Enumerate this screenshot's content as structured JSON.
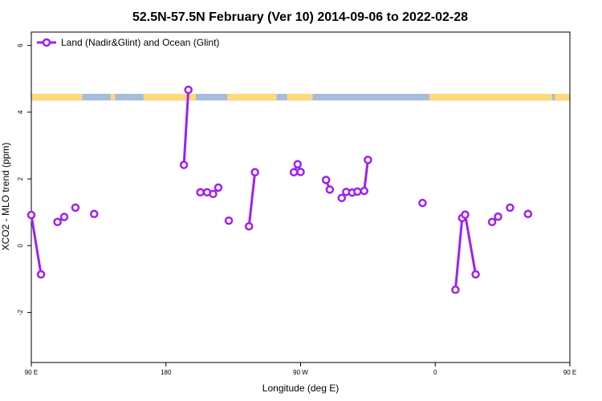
{
  "chart_data": {
    "type": "line",
    "title": "52.5N-57.5N February (Ver 10)   2014-09-06 to 2022-02-28",
    "xlabel": "Longitude (deg E)",
    "ylabel": "XCO2 - MLO trend (ppm)",
    "xlim": [
      -180,
      180
    ],
    "ylim": [
      -3.5,
      6.4
    ],
    "x_ticks": [
      {
        "value": -180,
        "label": "90 E"
      },
      {
        "value": -90,
        "label": "180"
      },
      {
        "value": 0,
        "label": "90 W"
      },
      {
        "value": 90,
        "label": "0"
      },
      {
        "value": 180,
        "label": "90 E"
      },
      {
        "value": 270,
        "label": "180"
      }
    ],
    "y_ticks": [
      {
        "value": -2,
        "label": "-2"
      },
      {
        "value": 0,
        "label": "0"
      },
      {
        "value": 2,
        "label": "2"
      },
      {
        "value": 4,
        "label": "4"
      },
      {
        "value": 6,
        "label": "6"
      }
    ],
    "legend": {
      "position": "top-left",
      "label": "Land (Nadir&Glint) and Ocean (Glint)"
    },
    "series_color": "#A020F0",
    "land_color": "#FFD97A",
    "ocean_color": "#A6BCDC",
    "surface_strip": {
      "y_range": [
        4.35,
        4.55
      ]
    },
    "series": [
      {
        "name": "Land (Nadir&Glint) and Ocean (Glint)",
        "segments": [
          [
            [
              -180,
              0.92
            ],
            [
              -173.5,
              -0.86
            ]
          ],
          [
            [
              -162.5,
              0.71
            ],
            [
              -158,
              0.86
            ]
          ],
          [
            [
              -150.5,
              1.14
            ]
          ],
          [
            [
              -138,
              0.95
            ]
          ],
          [
            [
              -78,
              2.42
            ],
            [
              -75,
              4.67
            ]
          ],
          [
            [
              -67,
              1.6
            ],
            [
              -62.5,
              1.6
            ],
            [
              -58.5,
              1.55
            ],
            [
              -55,
              1.74
            ]
          ],
          [
            [
              -48,
              0.75
            ]
          ],
          [
            [
              -34.5,
              0.58
            ],
            [
              -30.5,
              2.2
            ]
          ],
          [
            [
              -4.5,
              2.2
            ],
            [
              -2,
              2.44
            ],
            [
              0,
              2.21
            ]
          ],
          [
            [
              17,
              1.97
            ],
            [
              19.5,
              1.68
            ]
          ],
          [
            [
              27.5,
              1.43
            ],
            [
              30.5,
              1.61
            ],
            [
              34.5,
              1.59
            ],
            [
              38,
              1.62
            ],
            [
              42.5,
              1.64
            ],
            [
              45,
              2.57
            ]
          ],
          [
            [
              81.5,
              1.28
            ]
          ],
          [
            [
              103.5,
              -1.32
            ],
            [
              108,
              0.83
            ],
            [
              110,
              0.93
            ],
            [
              117,
              -0.86
            ]
          ],
          [
            [
              128,
              0.71
            ],
            [
              132,
              0.87
            ]
          ],
          [
            [
              140,
              1.14
            ]
          ],
          [
            [
              152,
              0.95
            ]
          ]
        ]
      }
    ]
  }
}
